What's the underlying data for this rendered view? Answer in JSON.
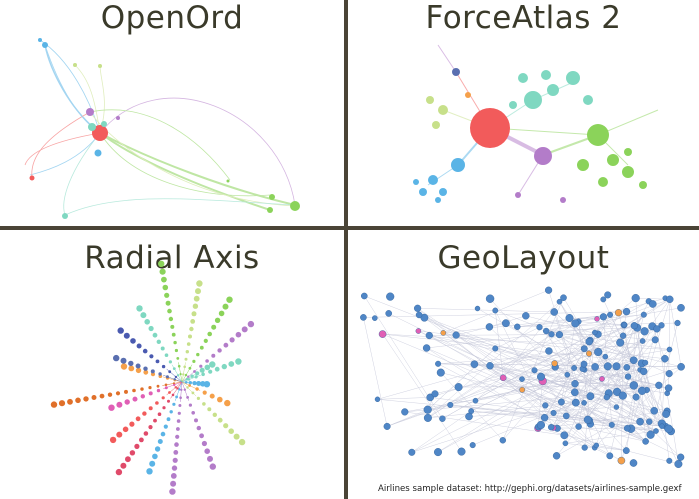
{
  "panels": [
    {
      "id": "openord",
      "title": "OpenOrd"
    },
    {
      "id": "forceatlas",
      "title": "ForceAtlas 2"
    },
    {
      "id": "radial",
      "title": "Radial Axis"
    },
    {
      "id": "geolayout",
      "title": "GeoLayout"
    }
  ],
  "caption": "Airlines sample dataset: http://gephi.org/datasets/airlines-sample.gexf",
  "colors": {
    "divider": "#4a4436",
    "red": "#f25b5b",
    "green": "#8bd35a",
    "lightgreen": "#c7e08a",
    "teal": "#7fd8c1",
    "blue": "#5ab4e6",
    "purple": "#b37cc9",
    "geo_blue": "#4f86c6",
    "geo_pink": "#e05fb5",
    "geo_orange": "#f5a04a"
  }
}
